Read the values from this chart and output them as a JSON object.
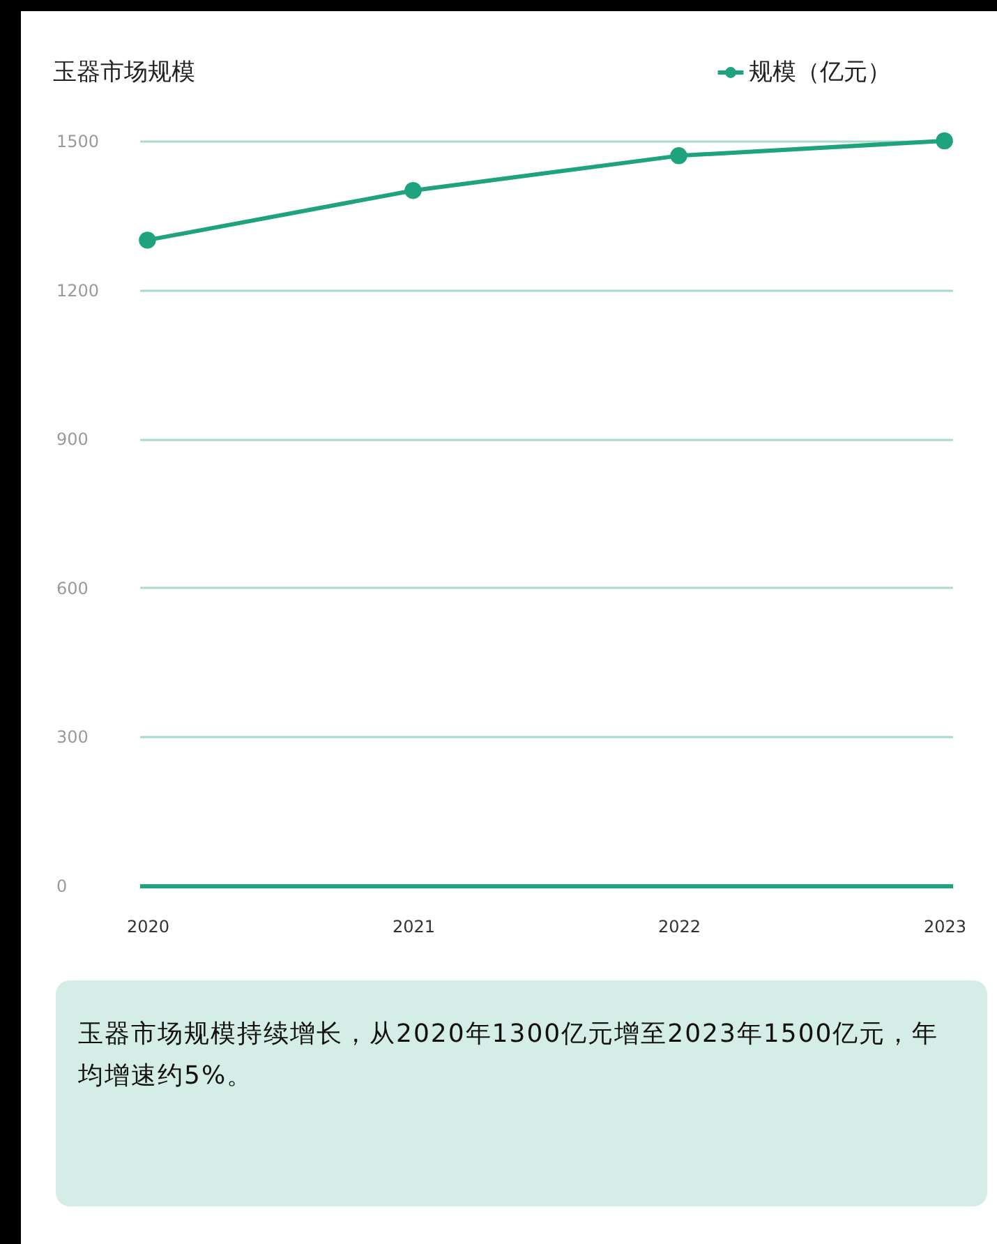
{
  "chart_data": {
    "type": "line",
    "title": "玉器市场规模",
    "categories": [
      "2020",
      "2021",
      "2022",
      "2023"
    ],
    "series": [
      {
        "name": "规模（亿元）",
        "color": "#1fa37f",
        "values": [
          1300,
          1400,
          1470,
          1500
        ]
      }
    ],
    "ylim": [
      0,
      1500
    ],
    "yticks": [
      0,
      300,
      600,
      900,
      1200,
      1500
    ],
    "grid": "y",
    "legend": "top right",
    "marker": "circle",
    "annotations": [
      "玉器市场规模持续增长，从2020年1300亿元增至2023年1500亿元，年均增速约5%。"
    ]
  }
}
